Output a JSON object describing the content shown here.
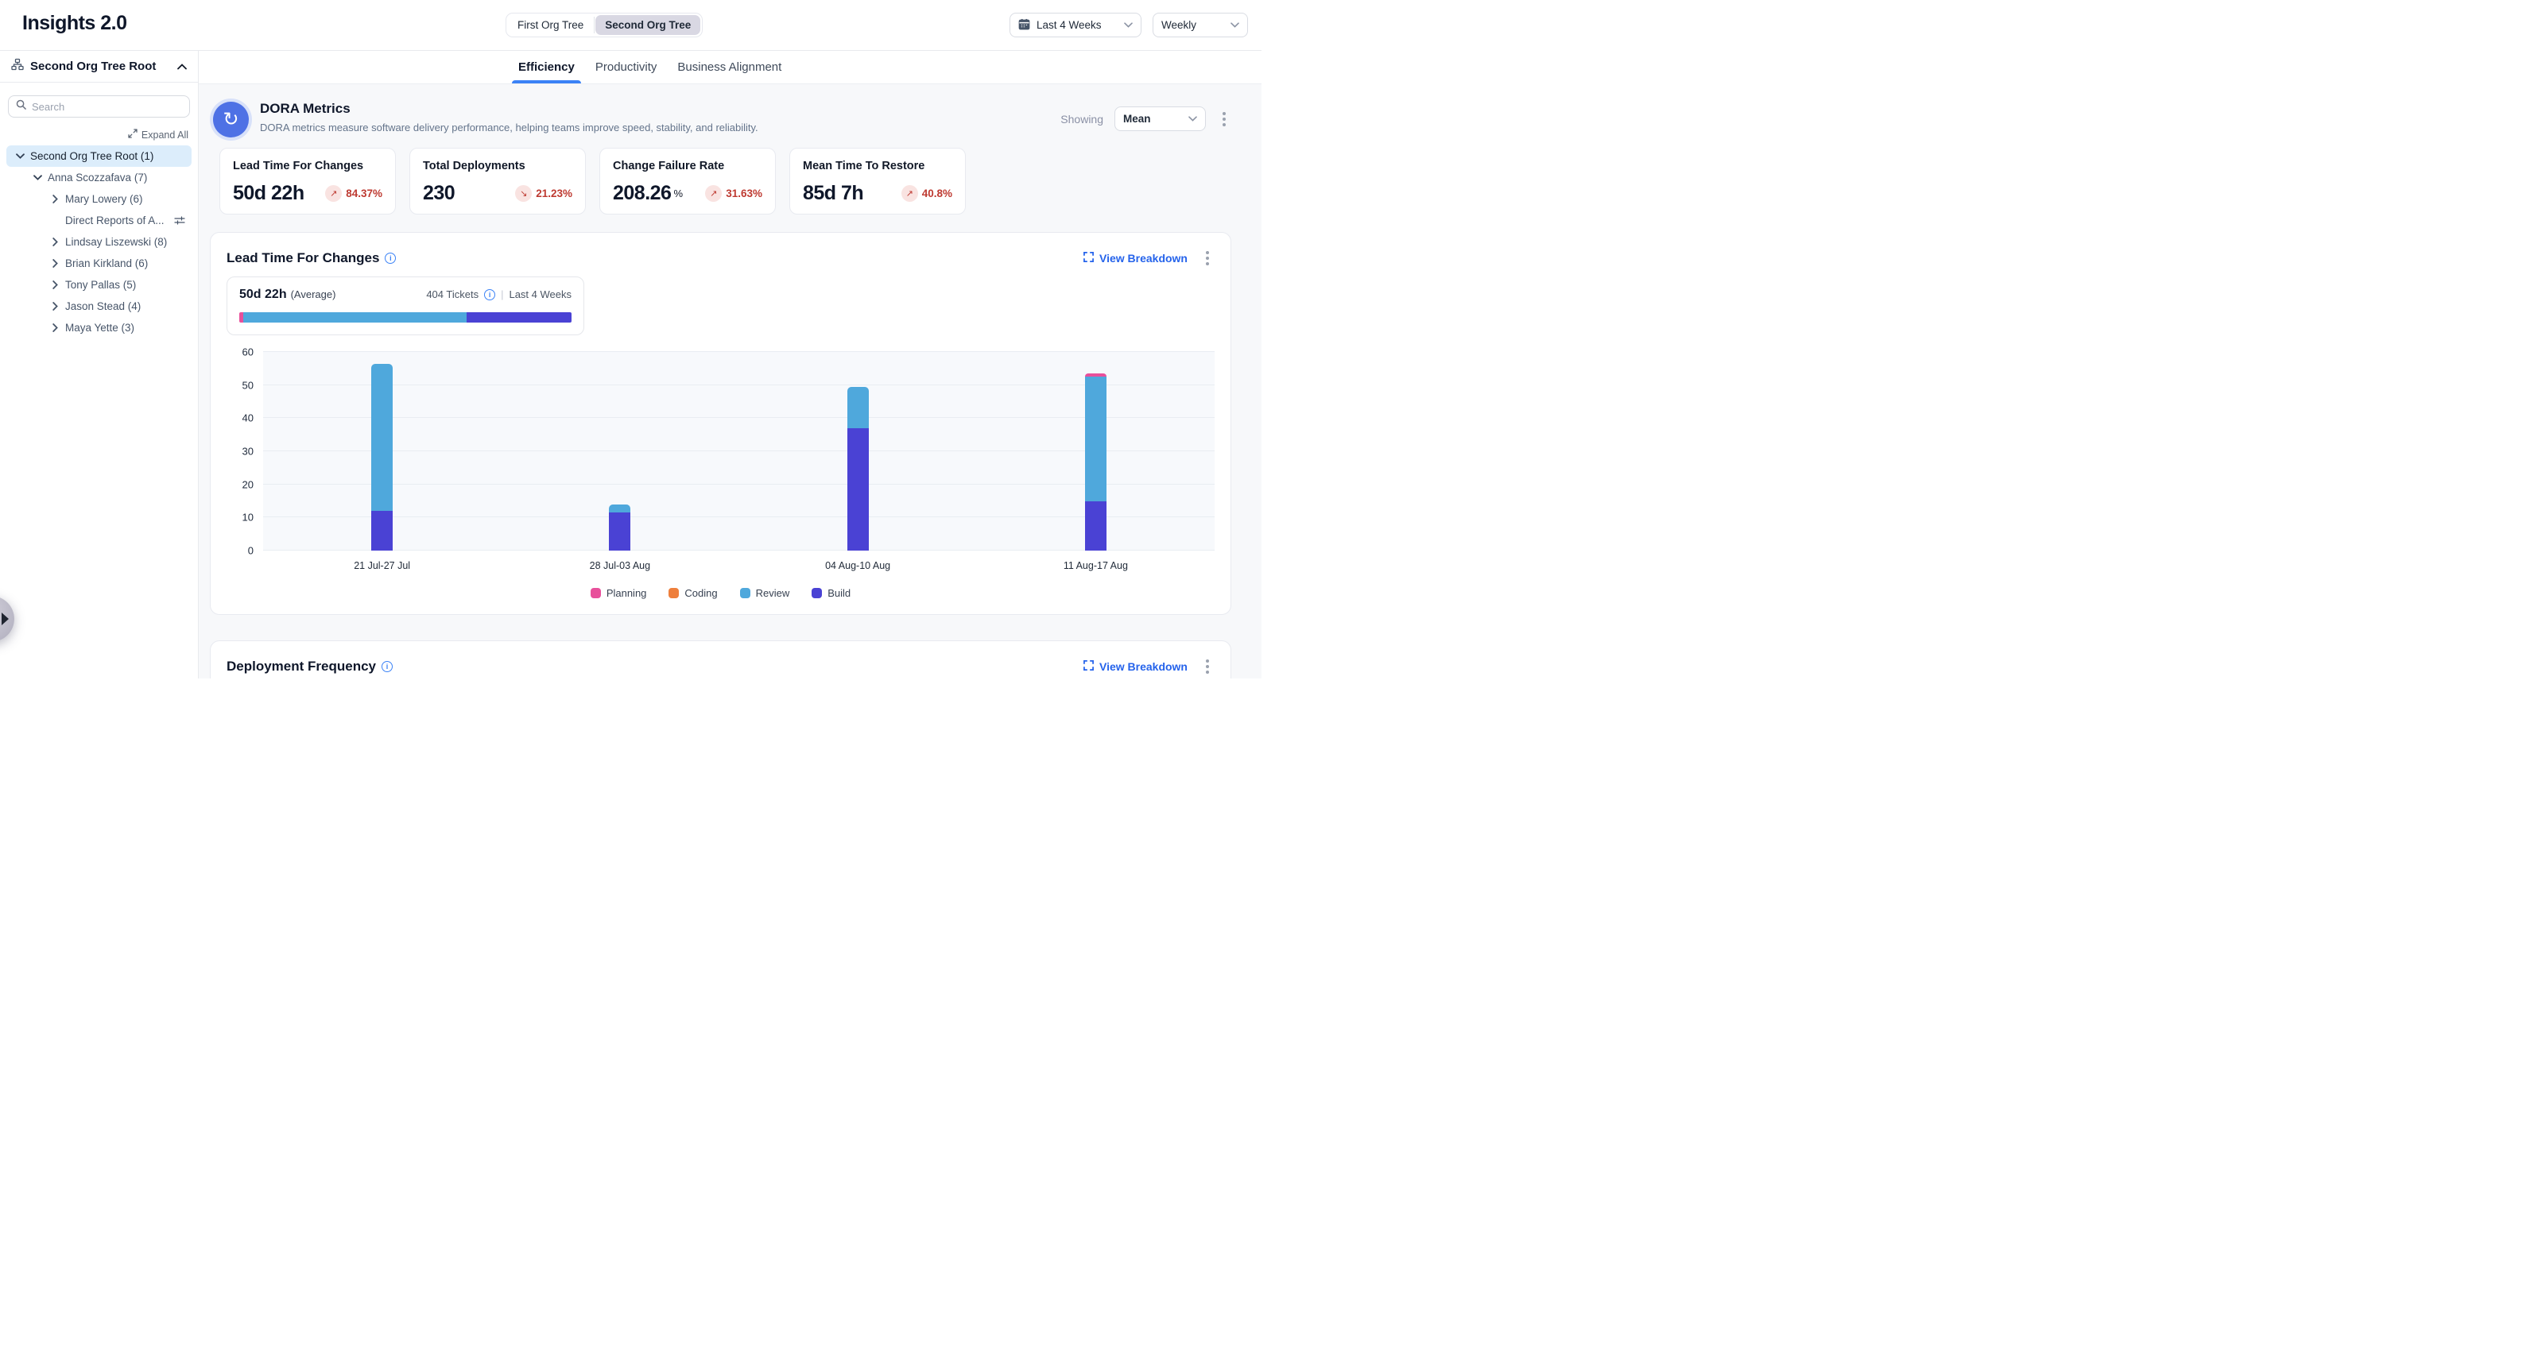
{
  "header": {
    "title": "Insights 2.0",
    "org_toggle": {
      "options": [
        "First Org Tree",
        "Second Org Tree"
      ],
      "active": "Second Org Tree"
    },
    "date_range": "Last 4 Weeks",
    "granularity": "Weekly"
  },
  "sidebar": {
    "root_label": "Second Org Tree Root",
    "search_placeholder": "Search",
    "expand_all_label": "Expand All",
    "tree": [
      {
        "label": "Second Org Tree Root (1)",
        "level": 0,
        "state": "expanded",
        "selected": true
      },
      {
        "label": "Anna Scozzafava (7)",
        "level": 1,
        "state": "expanded"
      },
      {
        "label": "Mary Lowery (6)",
        "level": 2,
        "state": "collapsed"
      },
      {
        "label": "Direct Reports of A...",
        "level": 2,
        "state": "none",
        "has_filter_icon": true
      },
      {
        "label": "Lindsay Liszewski (8)",
        "level": 2,
        "state": "collapsed"
      },
      {
        "label": "Brian Kirkland (6)",
        "level": 2,
        "state": "collapsed"
      },
      {
        "label": "Tony Pallas (5)",
        "level": 2,
        "state": "collapsed"
      },
      {
        "label": "Jason Stead (4)",
        "level": 2,
        "state": "collapsed"
      },
      {
        "label": "Maya Yette (3)",
        "level": 2,
        "state": "collapsed"
      }
    ]
  },
  "tabs": [
    {
      "label": "Efficiency",
      "active": true
    },
    {
      "label": "Productivity",
      "active": false
    },
    {
      "label": "Business Alignment",
      "active": false
    }
  ],
  "dora": {
    "title": "DORA Metrics",
    "subtitle": "DORA metrics measure software delivery performance, helping teams improve speed, stability, and reliability.",
    "showing_label": "Showing",
    "showing_value": "Mean",
    "cards": [
      {
        "label": "Lead Time For Changes",
        "value": "50d 22h",
        "unit": "",
        "delta": "84.37%",
        "direction": "up"
      },
      {
        "label": "Total Deployments",
        "value": "230",
        "unit": "",
        "delta": "21.23%",
        "direction": "down"
      },
      {
        "label": "Change Failure Rate",
        "value": "208.26",
        "unit": "%",
        "delta": "31.63%",
        "direction": "up"
      },
      {
        "label": "Mean Time To Restore",
        "value": "85d 7h",
        "unit": "",
        "delta": "40.8%",
        "direction": "up"
      }
    ],
    "delta_color": "#be3a31"
  },
  "lead_time_section": {
    "title": "Lead Time For Changes",
    "view_breakdown_label": "View Breakdown",
    "summary": {
      "value": "50d 22h",
      "qualifier": "(Average)",
      "tickets": "404 Tickets",
      "divider": "|",
      "range": "Last 4 Weeks",
      "bar_segments": [
        {
          "name": "Planning",
          "pct": 1.1,
          "color": "#e8509b"
        },
        {
          "name": "Review",
          "pct": 67.4,
          "color": "#4fa8dc"
        },
        {
          "name": "Build",
          "pct": 31.5,
          "color": "#4a42d4"
        }
      ]
    }
  },
  "chart_data": {
    "type": "bar",
    "stacked": true,
    "title": "Lead Time For Changes",
    "categories": [
      "21 Jul-27 Jul",
      "28 Jul-03 Aug",
      "04 Aug-10 Aug",
      "11 Aug-17 Aug"
    ],
    "series": [
      {
        "name": "Planning",
        "color": "#e8509b",
        "values": [
          0,
          0,
          0,
          1
        ]
      },
      {
        "name": "Coding",
        "color": "#ee7f3c",
        "values": [
          0,
          0,
          0,
          0
        ]
      },
      {
        "name": "Review",
        "color": "#4fa8dc",
        "values": [
          44.5,
          2.5,
          12.5,
          37.5
        ]
      },
      {
        "name": "Build",
        "color": "#4a42d4",
        "values": [
          12,
          11.5,
          37,
          15
        ]
      }
    ],
    "ylim": [
      0,
      60
    ],
    "yticks": [
      0,
      10,
      20,
      30,
      40,
      50,
      60
    ],
    "grid": true,
    "legend_position": "bottom",
    "legend": [
      "Planning",
      "Coding",
      "Review",
      "Build"
    ]
  },
  "deployment_section": {
    "title": "Deployment Frequency",
    "view_breakdown_label": "View Breakdown"
  },
  "icons": {
    "calendar": "calendar-grid",
    "search": "magnifier",
    "org_tree": "hierarchy-boxes",
    "expand_all": "diagonal-arrows",
    "filter": "sliders",
    "dora": "cycle-arrow",
    "info": "i-in-circle",
    "view_breakdown": "corner-brackets",
    "kebab": "three-dots-vertical",
    "up_arrow": "↗",
    "down_arrow": "↘"
  }
}
